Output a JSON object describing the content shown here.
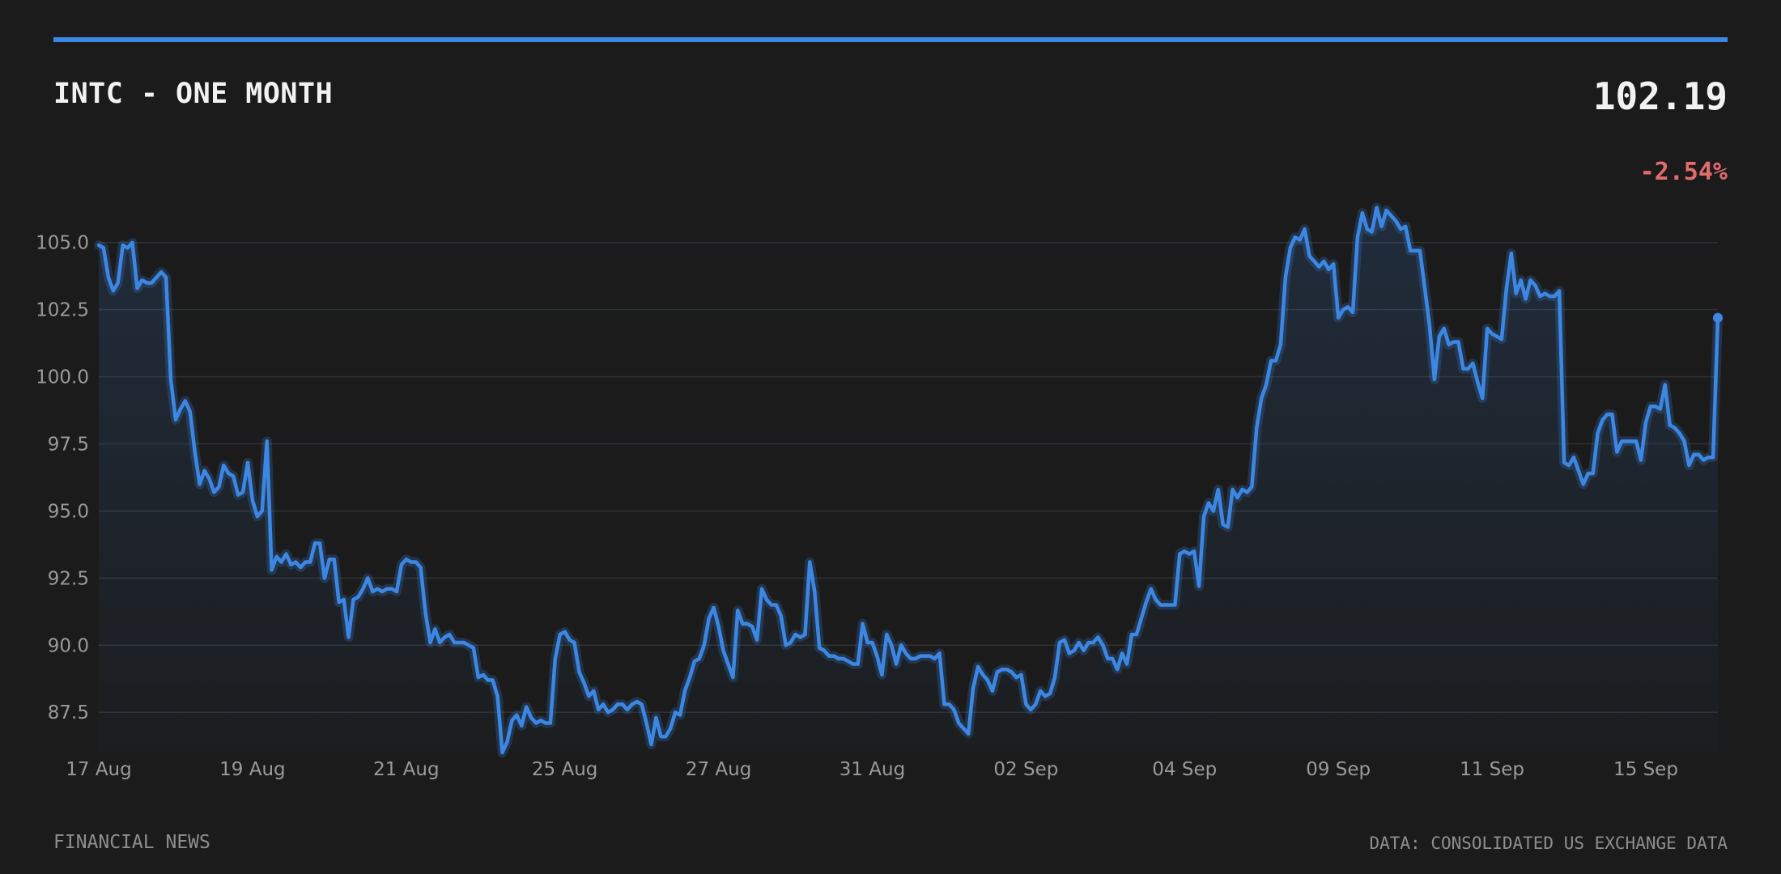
{
  "header": {
    "title": "INTC - ONE MONTH",
    "price": "102.19",
    "change": "-2.54%"
  },
  "footer": {
    "source_left": "FINANCIAL NEWS",
    "source_right": "DATA: CONSOLIDATED US EXCHANGE DATA"
  },
  "colors": {
    "accent": "#3d87e4",
    "negative": "#e06c6c",
    "background": "#1b1b1b",
    "grid": "#2e3236",
    "tick_text": "#9a9a9a"
  },
  "chart_data": {
    "type": "area",
    "ylim": [
      86.0,
      106.8
    ],
    "yticks": [
      87.5,
      90.0,
      92.5,
      95.0,
      97.5,
      100.0,
      102.5,
      105.0
    ],
    "ytick_labels": [
      "87.5",
      "90.0",
      "92.5",
      "95.0",
      "97.5",
      "100.0",
      "102.5",
      "105.0"
    ],
    "xtick_labels": [
      "17 Aug",
      "19 Aug",
      "21 Aug",
      "25 Aug",
      "27 Aug",
      "31 Aug",
      "02 Sep",
      "04 Sep",
      "09 Sep",
      "11 Sep",
      "15 Sep"
    ],
    "xtick_positions": [
      0,
      20,
      40,
      60,
      80,
      100,
      120,
      140,
      160,
      180,
      200
    ],
    "grid": true,
    "series": [
      {
        "values": [
          104.9,
          104.8,
          103.7,
          103.2,
          103.5,
          104.9,
          104.8,
          105.0,
          103.3,
          103.6,
          103.5,
          103.5,
          103.7,
          103.9,
          103.7,
          99.9,
          98.4,
          98.8,
          99.1,
          98.7,
          97.2,
          96.0,
          96.5,
          96.2,
          95.7,
          95.9,
          96.7,
          96.4,
          96.3,
          95.6,
          95.7,
          96.8,
          95.4,
          94.8,
          95.0,
          97.6,
          92.8,
          93.3,
          93.1,
          93.4,
          93.0,
          93.1,
          92.9,
          93.1,
          93.1,
          93.8,
          93.8,
          92.5,
          93.2,
          93.2,
          91.6,
          91.7,
          90.3,
          91.7,
          91.8,
          92.1,
          92.5,
          92.0,
          92.1,
          92.0,
          92.1,
          92.1,
          92.0,
          93.0,
          93.2,
          93.1,
          93.1,
          92.9,
          91.2,
          90.1,
          90.6,
          90.1,
          90.3,
          90.4,
          90.1,
          90.1,
          90.1,
          90.0,
          89.9,
          88.8,
          88.9,
          88.7,
          88.7,
          88.1,
          86.0,
          86.4,
          87.2,
          87.4,
          87.0,
          87.7,
          87.3,
          87.1,
          87.2,
          87.1,
          87.1,
          89.5,
          90.4,
          90.5,
          90.2,
          90.1,
          89.0,
          88.6,
          88.1,
          88.3,
          87.6,
          87.8,
          87.5,
          87.6,
          87.8,
          87.8,
          87.6,
          87.8,
          87.9,
          87.8,
          87.1,
          86.3,
          87.3,
          86.6,
          86.6,
          86.9,
          87.5,
          87.4,
          88.3,
          88.8,
          89.4,
          89.5,
          90.0,
          91.0,
          91.4,
          90.7,
          89.8,
          89.3,
          88.8,
          91.3,
          90.8,
          90.8,
          90.7,
          90.2,
          92.1,
          91.7,
          91.5,
          91.5,
          91.1,
          90.0,
          90.1,
          90.4,
          90.3,
          90.4,
          93.1,
          92.0,
          89.9,
          89.8,
          89.6,
          89.6,
          89.5,
          89.5,
          89.4,
          89.3,
          89.3,
          90.8,
          90.1,
          90.1,
          89.6,
          88.9,
          90.4,
          90.0,
          89.3,
          90.0,
          89.7,
          89.5,
          89.5,
          89.6,
          89.6,
          89.6,
          89.5,
          89.7,
          87.8,
          87.8,
          87.6,
          87.1,
          86.9,
          86.7,
          88.4,
          89.2,
          88.9,
          88.7,
          88.3,
          89.0,
          89.1,
          89.1,
          89.0,
          88.8,
          88.9,
          87.8,
          87.6,
          87.8,
          88.3,
          88.1,
          88.2,
          88.8,
          90.1,
          90.2,
          89.7,
          89.8,
          90.1,
          89.8,
          90.1,
          90.1,
          90.3,
          90.0,
          89.5,
          89.5,
          89.1,
          89.7,
          89.3,
          90.4,
          90.4,
          91.0,
          91.6,
          92.1,
          91.7,
          91.5,
          91.5,
          91.5,
          91.5,
          93.4,
          93.5,
          93.4,
          93.5,
          92.2,
          94.8,
          95.3,
          95.0,
          95.8,
          94.5,
          94.4,
          95.8,
          95.5,
          95.8,
          95.7,
          95.9,
          98.1,
          99.2,
          99.7,
          100.6,
          100.6,
          101.2,
          103.7,
          104.8,
          105.2,
          105.1,
          105.5,
          104.5,
          104.3,
          104.1,
          104.3,
          104.0,
          104.2,
          102.2,
          102.5,
          102.6,
          102.4,
          105.2,
          106.1,
          105.5,
          105.4,
          106.3,
          105.6,
          106.2,
          106.0,
          105.8,
          105.5,
          105.6,
          104.7,
          104.7,
          104.7,
          103.3,
          101.9,
          99.9,
          101.5,
          101.8,
          101.2,
          101.3,
          101.3,
          100.3,
          100.3,
          100.5,
          99.8,
          99.2,
          101.8,
          101.6,
          101.5,
          101.4,
          103.3,
          104.6,
          103.1,
          103.6,
          102.9,
          103.6,
          103.4,
          103.0,
          103.1,
          103.0,
          103.0,
          103.2,
          96.8,
          96.7,
          97.0,
          96.5,
          96.0,
          96.4,
          96.4,
          97.9,
          98.4,
          98.6,
          98.6,
          97.2,
          97.6,
          97.6,
          97.6,
          97.6,
          96.9,
          98.3,
          98.9,
          98.9,
          98.8,
          99.7,
          98.2,
          98.1,
          97.9,
          97.6,
          96.7,
          97.1,
          97.1,
          96.9,
          97.0,
          97.0,
          102.2
        ]
      }
    ]
  }
}
